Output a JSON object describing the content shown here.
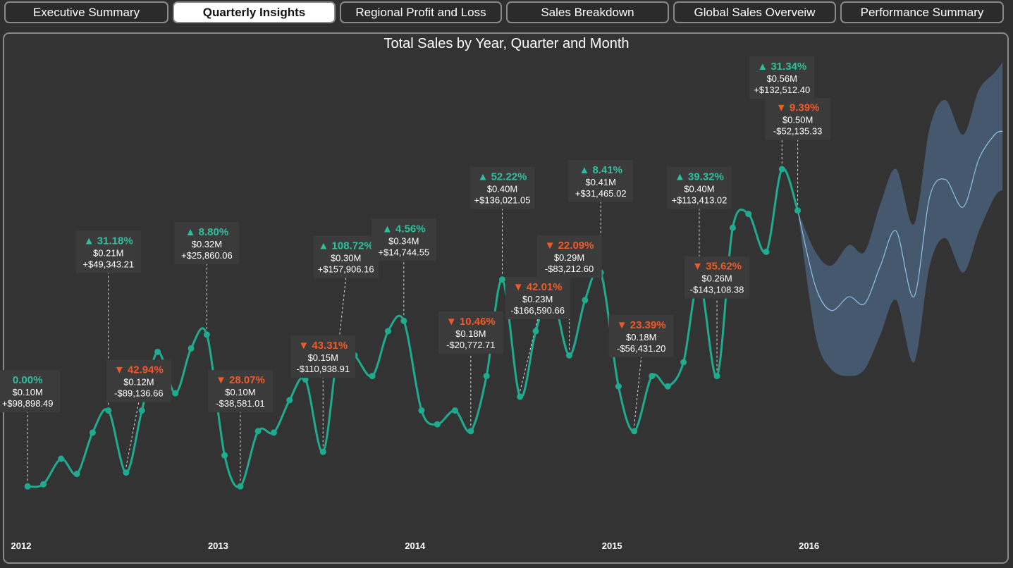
{
  "tabs": [
    {
      "label": "Executive Summary",
      "active": false
    },
    {
      "label": "Quarterly Insights",
      "active": true
    },
    {
      "label": "Regional Profit and Loss",
      "active": false
    },
    {
      "label": "Sales Breakdown",
      "active": false
    },
    {
      "label": "Global Sales Overveiw",
      "active": false
    },
    {
      "label": "Performance Summary",
      "active": false
    }
  ],
  "chart_data": {
    "type": "line",
    "title": "Total Sales by Year, Quarter and Month",
    "xlabel": "",
    "ylabel": "",
    "x_ticks": [
      "2012",
      "2013",
      "2014",
      "2015",
      "2016"
    ],
    "x_range": [
      2012.0,
      2017.0
    ],
    "y_range": [
      0,
      0.7
    ],
    "unit": "$M",
    "grid": false,
    "colors": {
      "line": "#1fab8f",
      "forecast_line": "#8ec2e8",
      "forecast_band": "#4a5f78",
      "up": "#2fbf9f",
      "down": "#f05a28"
    },
    "series": [
      {
        "points": [
          {
            "x": 2012.04,
            "y": 0.1
          },
          {
            "x": 2012.12,
            "y": 0.103
          },
          {
            "x": 2012.21,
            "y": 0.14
          },
          {
            "x": 2012.29,
            "y": 0.118
          },
          {
            "x": 2012.37,
            "y": 0.178
          },
          {
            "x": 2012.45,
            "y": 0.21
          },
          {
            "x": 2012.54,
            "y": 0.12
          },
          {
            "x": 2012.62,
            "y": 0.21
          },
          {
            "x": 2012.7,
            "y": 0.295
          },
          {
            "x": 2012.79,
            "y": 0.235
          },
          {
            "x": 2012.87,
            "y": 0.3
          },
          {
            "x": 2012.95,
            "y": 0.32
          },
          {
            "x": 2013.04,
            "y": 0.145
          },
          {
            "x": 2013.12,
            "y": 0.1
          },
          {
            "x": 2013.21,
            "y": 0.18
          },
          {
            "x": 2013.29,
            "y": 0.178
          },
          {
            "x": 2013.37,
            "y": 0.225
          },
          {
            "x": 2013.45,
            "y": 0.255
          },
          {
            "x": 2013.54,
            "y": 0.15
          },
          {
            "x": 2013.62,
            "y": 0.3
          },
          {
            "x": 2013.7,
            "y": 0.29
          },
          {
            "x": 2013.79,
            "y": 0.26
          },
          {
            "x": 2013.87,
            "y": 0.325
          },
          {
            "x": 2013.95,
            "y": 0.34
          },
          {
            "x": 2014.04,
            "y": 0.21
          },
          {
            "x": 2014.12,
            "y": 0.19
          },
          {
            "x": 2014.21,
            "y": 0.21
          },
          {
            "x": 2014.29,
            "y": 0.18
          },
          {
            "x": 2014.37,
            "y": 0.26
          },
          {
            "x": 2014.45,
            "y": 0.4
          },
          {
            "x": 2014.54,
            "y": 0.23
          },
          {
            "x": 2014.62,
            "y": 0.325
          },
          {
            "x": 2014.7,
            "y": 0.38
          },
          {
            "x": 2014.79,
            "y": 0.29
          },
          {
            "x": 2014.87,
            "y": 0.37
          },
          {
            "x": 2014.95,
            "y": 0.41
          },
          {
            "x": 2015.04,
            "y": 0.245
          },
          {
            "x": 2015.12,
            "y": 0.18
          },
          {
            "x": 2015.21,
            "y": 0.26
          },
          {
            "x": 2015.29,
            "y": 0.245
          },
          {
            "x": 2015.37,
            "y": 0.28
          },
          {
            "x": 2015.45,
            "y": 0.4
          },
          {
            "x": 2015.54,
            "y": 0.26
          },
          {
            "x": 2015.62,
            "y": 0.475
          },
          {
            "x": 2015.7,
            "y": 0.495
          },
          {
            "x": 2015.79,
            "y": 0.44
          },
          {
            "x": 2015.87,
            "y": 0.56
          },
          {
            "x": 2015.95,
            "y": 0.5
          }
        ]
      }
    ],
    "forecast": [
      {
        "x": 2015.95,
        "y": 0.5,
        "low": 0.5,
        "high": 0.5
      },
      {
        "x": 2016.04,
        "y": 0.39,
        "low": 0.32,
        "high": 0.44
      },
      {
        "x": 2016.12,
        "y": 0.355,
        "low": 0.27,
        "high": 0.42
      },
      {
        "x": 2016.21,
        "y": 0.375,
        "low": 0.26,
        "high": 0.45
      },
      {
        "x": 2016.29,
        "y": 0.365,
        "low": 0.27,
        "high": 0.44
      },
      {
        "x": 2016.37,
        "y": 0.42,
        "low": 0.32,
        "high": 0.51
      },
      {
        "x": 2016.45,
        "y": 0.47,
        "low": 0.37,
        "high": 0.56
      },
      {
        "x": 2016.54,
        "y": 0.375,
        "low": 0.28,
        "high": 0.48
      },
      {
        "x": 2016.62,
        "y": 0.52,
        "low": 0.42,
        "high": 0.62
      },
      {
        "x": 2016.7,
        "y": 0.545,
        "low": 0.46,
        "high": 0.66
      },
      {
        "x": 2016.79,
        "y": 0.505,
        "low": 0.41,
        "high": 0.61
      },
      {
        "x": 2016.87,
        "y": 0.575,
        "low": 0.47,
        "high": 0.675
      },
      {
        "x": 2016.95,
        "y": 0.61,
        "low": 0.52,
        "high": 0.7
      },
      {
        "x": 2016.99,
        "y": 0.615,
        "low": 0.53,
        "high": 0.715
      }
    ],
    "annotations": [
      {
        "point_index": 0,
        "direction": "none",
        "pct": "0.00%",
        "value": "$0.10M",
        "delta": "+$98,898.49",
        "anchor": "above"
      },
      {
        "point_index": 5,
        "direction": "up",
        "pct": "31.18%",
        "value": "$0.21M",
        "delta": "+$49,343.21",
        "anchor": "above"
      },
      {
        "point_index": 6,
        "direction": "down",
        "pct": "42.94%",
        "value": "$0.12M",
        "delta": "-$89,136.66",
        "anchor": "above"
      },
      {
        "point_index": 11,
        "direction": "up",
        "pct": "8.80%",
        "value": "$0.32M",
        "delta": "+$25,860.06",
        "anchor": "above"
      },
      {
        "point_index": 13,
        "direction": "down",
        "pct": "28.07%",
        "value": "$0.10M",
        "delta": "-$38,581.01",
        "anchor": "above"
      },
      {
        "point_index": 18,
        "direction": "down",
        "pct": "43.31%",
        "value": "$0.15M",
        "delta": "-$110,938.91",
        "anchor": "above"
      },
      {
        "point_index": 19,
        "direction": "up",
        "pct": "108.72%",
        "value": "$0.30M",
        "delta": "+$157,906.16",
        "anchor": "above"
      },
      {
        "point_index": 23,
        "direction": "up",
        "pct": "4.56%",
        "value": "$0.34M",
        "delta": "+$14,744.55",
        "anchor": "above"
      },
      {
        "point_index": 27,
        "direction": "down",
        "pct": "10.46%",
        "value": "$0.18M",
        "delta": "-$20,772.71",
        "anchor": "above"
      },
      {
        "point_index": 29,
        "direction": "up",
        "pct": "52.22%",
        "value": "$0.40M",
        "delta": "+$136,021.05",
        "anchor": "above"
      },
      {
        "point_index": 30,
        "direction": "down",
        "pct": "42.01%",
        "value": "$0.23M",
        "delta": "-$166,590.66",
        "anchor": "above"
      },
      {
        "point_index": 33,
        "direction": "down",
        "pct": "22.09%",
        "value": "$0.29M",
        "delta": "-$83,212.60",
        "anchor": "above"
      },
      {
        "point_index": 35,
        "direction": "up",
        "pct": "8.41%",
        "value": "$0.41M",
        "delta": "+$31,465.02",
        "anchor": "above"
      },
      {
        "point_index": 37,
        "direction": "down",
        "pct": "23.39%",
        "value": "$0.18M",
        "delta": "-$56,431.20",
        "anchor": "above"
      },
      {
        "point_index": 41,
        "direction": "up",
        "pct": "39.32%",
        "value": "$0.40M",
        "delta": "+$113,413.02",
        "anchor": "above"
      },
      {
        "point_index": 42,
        "direction": "down",
        "pct": "35.62%",
        "value": "$0.26M",
        "delta": "-$143,108.38",
        "anchor": "above"
      },
      {
        "point_index": 46,
        "direction": "up",
        "pct": "31.34%",
        "value": "$0.56M",
        "delta": "+$132,512.40",
        "anchor": "above"
      },
      {
        "point_index": 47,
        "direction": "down",
        "pct": "9.39%",
        "value": "$0.50M",
        "delta": "-$52,135.33",
        "anchor": "above"
      }
    ]
  }
}
